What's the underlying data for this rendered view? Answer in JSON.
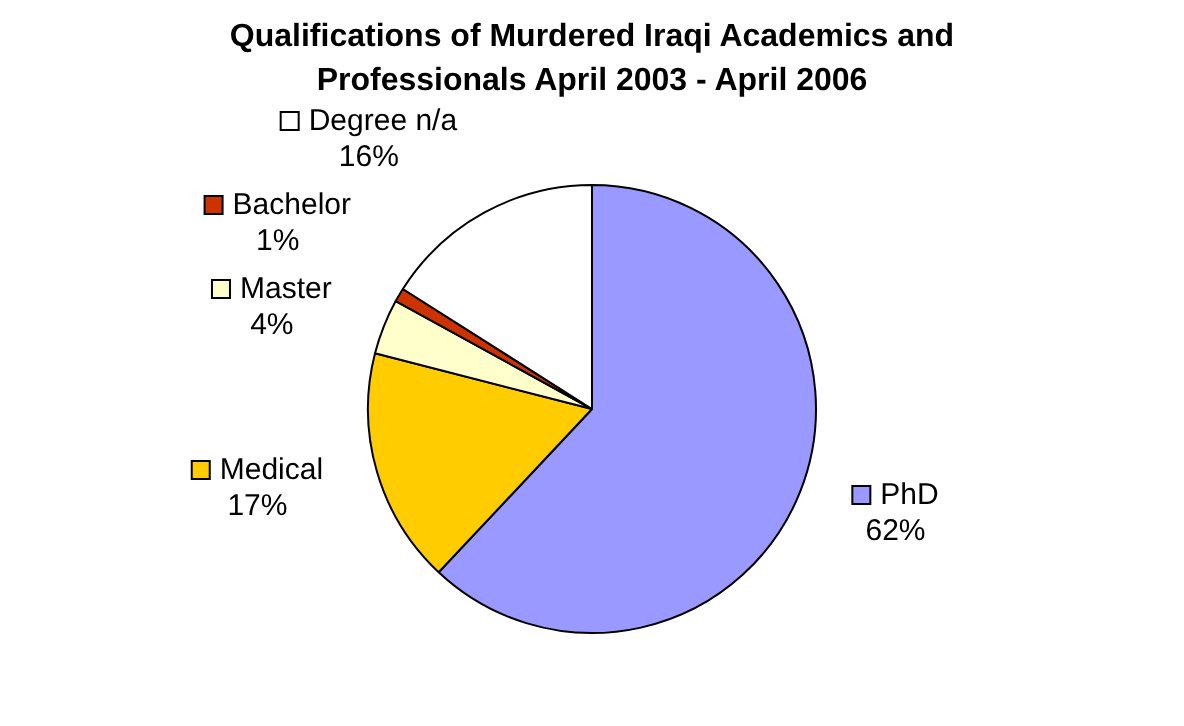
{
  "chart_data": {
    "type": "pie",
    "title": "Qualifications of Murdered Iraqi Academics and Professionals April 2003 - April 2006",
    "categories": [
      "PhD",
      "Medical",
      "Master",
      "Bachelor",
      "Degree n/a"
    ],
    "values": [
      62,
      17,
      4,
      1,
      16
    ],
    "colors": [
      "#9999ff",
      "#ffcc00",
      "#ffffcc",
      "#cc3300",
      "#ffffff"
    ],
    "value_labels": [
      "62%",
      "17%",
      "4%",
      "1%",
      "16%"
    ],
    "legend": "left"
  }
}
